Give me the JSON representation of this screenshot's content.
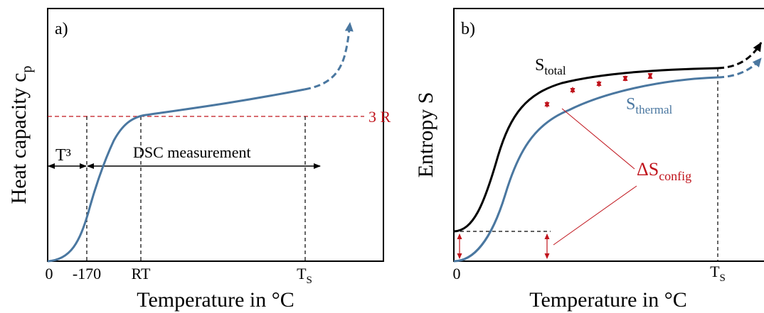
{
  "colors": {
    "blue": "#4a77a0",
    "red": "#c0141c",
    "black": "#000000"
  },
  "panel_a": {
    "tag": "a)",
    "ylabel_main": "Heat capacity c",
    "ylabel_sub": "p",
    "xlabel": "Temperature in °C",
    "ticks": {
      "zero": "0",
      "minus170": "-170",
      "rt": "RT",
      "ts_main": "T",
      "ts_sub": "S"
    },
    "ref_line_label": "3 R",
    "t3_label": "T³",
    "dsc_label": "DSC measurement"
  },
  "panel_b": {
    "tag": "b)",
    "ylabel": "Entropy S",
    "xlabel": "Temperature in °C",
    "ticks": {
      "zero": "0",
      "ts_main": "T",
      "ts_sub": "S"
    },
    "stotal_main": "S",
    "stotal_sub": "total",
    "sthermal_main": "S",
    "sthermal_sub": "thermal",
    "config_main": "ΔS",
    "config_sub": "config"
  }
}
